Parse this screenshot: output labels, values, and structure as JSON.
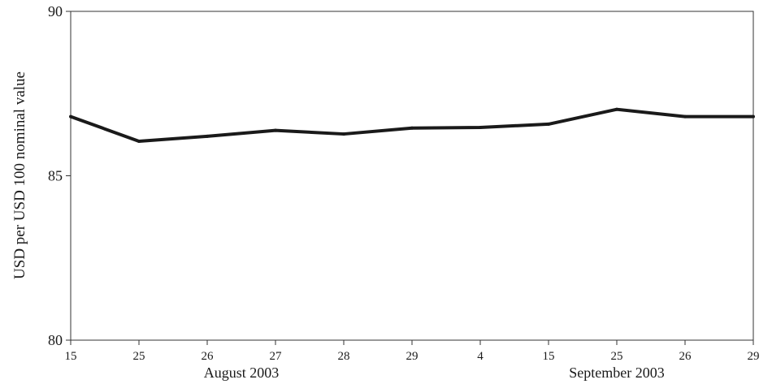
{
  "chart_data": {
    "type": "line",
    "title": "",
    "ylabel": "USD per USD 100 nominal value",
    "ylim": [
      80,
      90
    ],
    "yticks": [
      80,
      85,
      90
    ],
    "categories": [
      "15",
      "25",
      "26",
      "27",
      "28",
      "29",
      "4",
      "15",
      "25",
      "26",
      "29"
    ],
    "month_groups": [
      {
        "label": "August 2003",
        "from": 0,
        "to": 5
      },
      {
        "label": "September 2003",
        "from": 6,
        "to": 10
      }
    ],
    "series": [
      {
        "values": [
          86.8,
          86.05,
          86.2,
          86.38,
          86.27,
          86.45,
          86.47,
          86.57,
          87.02,
          86.8,
          86.8
        ],
        "color": "#1a1a1a"
      }
    ],
    "grid": false
  }
}
